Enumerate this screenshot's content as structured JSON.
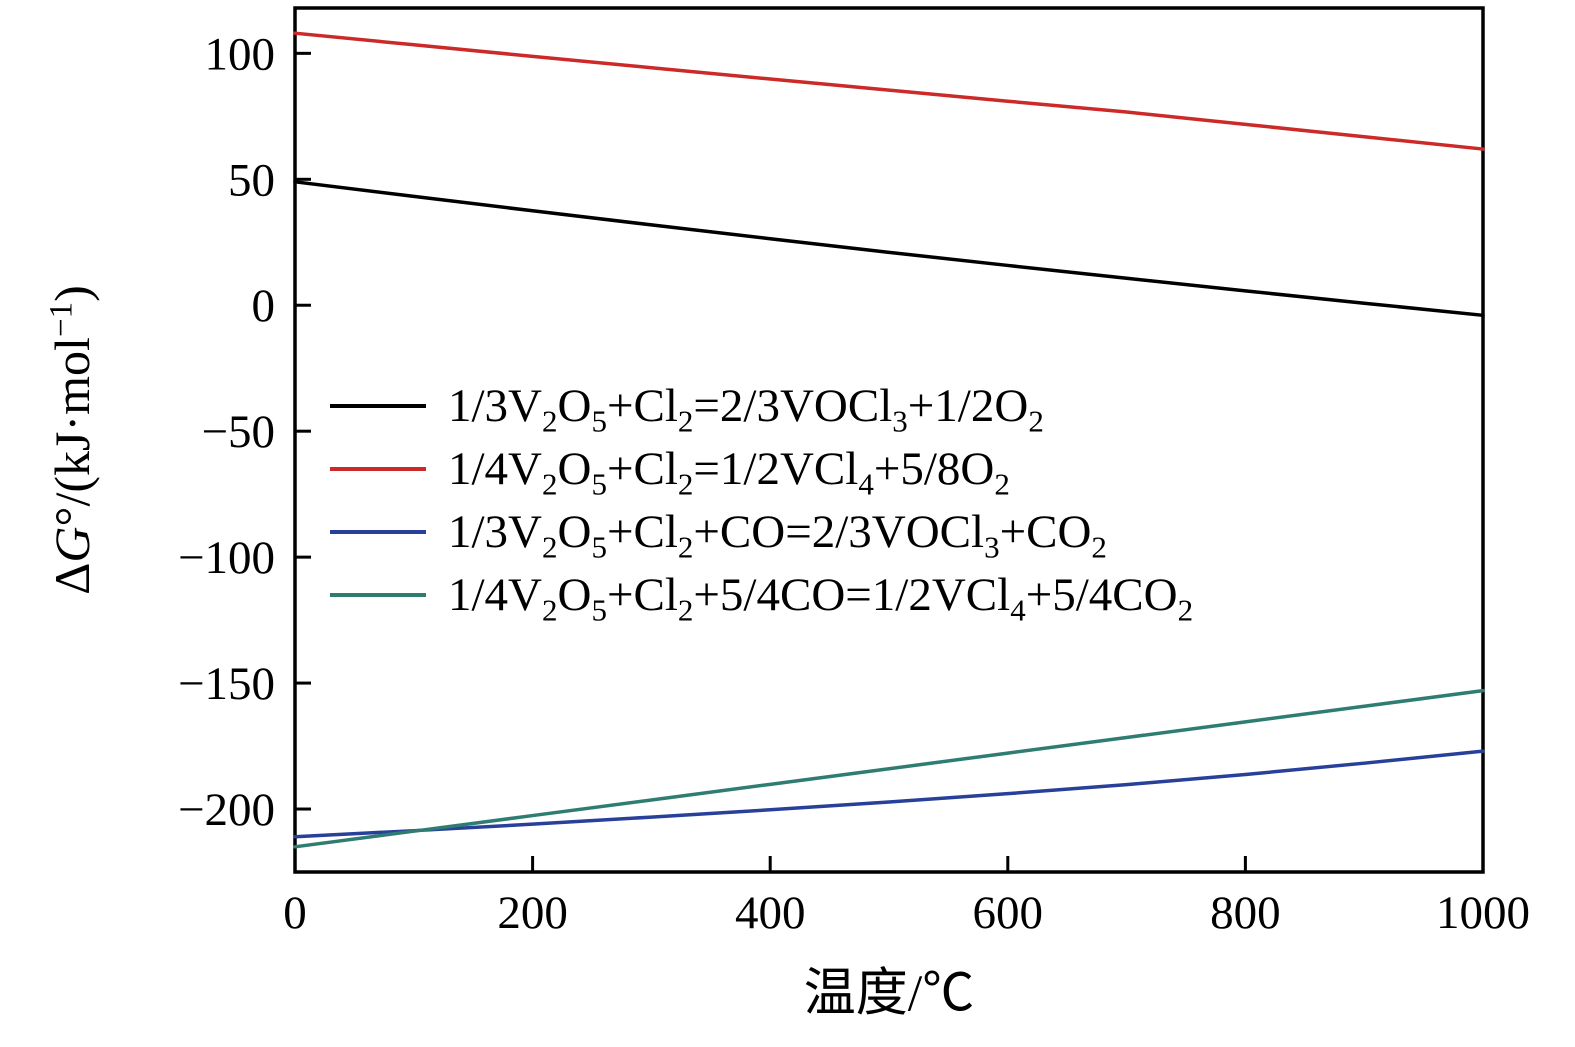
{
  "figure": {
    "background": "#ffffff",
    "axis_color": "#000000"
  },
  "chart_data": {
    "type": "line",
    "title": "",
    "xlabel": "温度/℃",
    "ylabel": "Δ*G*°/(kJ·mol^−1^)",
    "xlim": [
      0,
      1000
    ],
    "ylim": [
      -225,
      118
    ],
    "xticks": [
      0,
      200,
      400,
      600,
      800,
      1000
    ],
    "yticks": [
      -200,
      -150,
      -100,
      -50,
      0,
      50,
      100
    ],
    "grid": false,
    "tick_direction": "in",
    "legend_position": "center-left-inside",
    "x": [
      0,
      100,
      200,
      300,
      400,
      500,
      600,
      700,
      800,
      900,
      1000
    ],
    "series": [
      {
        "label": "1/3V~2~O~5~+Cl~2~=2/3VOCl~3~+1/2O~2~",
        "color": "#000000",
        "values": [
          49,
          43.2,
          37.5,
          31.9,
          26.4,
          21,
          15.8,
          10.7,
          5.7,
          0.8,
          -4
        ]
      },
      {
        "label": "1/4V~2~O~5~+Cl~2~=1/2VCl~4~+5/8O~2~",
        "color": "#cc2a28",
        "values": [
          108,
          103.4,
          98.8,
          94.3,
          89.8,
          85.4,
          81,
          76.7,
          71.8,
          66.9,
          62
        ]
      },
      {
        "label": "1/3V~2~O~5~+Cl~2~+CO=2/3VOCl~3~+CO~2~",
        "color": "#28409a",
        "values": [
          -211,
          -208.6,
          -206,
          -203.2,
          -200.3,
          -197.2,
          -193.9,
          -190.3,
          -186.3,
          -181.8,
          -177
        ]
      },
      {
        "label": "1/4V~2~O~5~+Cl~2~+5/4CO=1/2VCl~4~+5/4CO~2~",
        "color": "#2f7d72",
        "values": [
          -215,
          -208.8,
          -202.6,
          -196.4,
          -190.2,
          -184,
          -177.8,
          -171.6,
          -165.4,
          -159.2,
          -153
        ]
      }
    ]
  }
}
